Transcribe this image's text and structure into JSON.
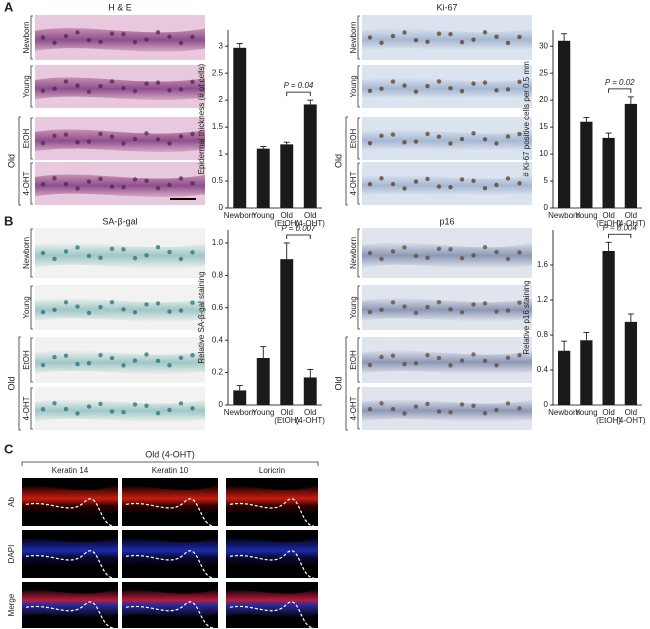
{
  "panel_labels": [
    "A",
    "B",
    "C"
  ],
  "micrographs": [
    {
      "title": "H & E",
      "rows": [
        "Newborn",
        "Young",
        "EtOH",
        "4-OHT"
      ],
      "group": "Old"
    },
    {
      "title": "Ki-67",
      "rows": [
        "Newborn",
        "Young",
        "EtOH",
        "4-OHT"
      ],
      "group": "Old"
    },
    {
      "title": "SA-β-gal",
      "rows": [
        "Newborn",
        "Young",
        "EtOH",
        "4-OHT"
      ],
      "group": "Old"
    },
    {
      "title": "p16",
      "rows": [
        "Newborn",
        "Young",
        "EtOH",
        "4-OHT"
      ],
      "group": "Old"
    }
  ],
  "fluorescence": {
    "title": "Old (4-OHT)",
    "columns": [
      "Keratin 14",
      "Keratin 10",
      "Loricrin"
    ],
    "rows": [
      "Ab",
      "DAPI",
      "Merge"
    ]
  },
  "chart_data": [
    {
      "type": "bar",
      "ylabel": "Epidermal thickness (# of cells)",
      "categories": [
        "Newborn",
        "Young",
        "Old (EtOH)",
        "Old (4-OHT)"
      ],
      "values": [
        2.97,
        1.1,
        1.18,
        1.92
      ],
      "errors": [
        0.08,
        0.04,
        0.04,
        0.08
      ],
      "color": "#1a1a1a",
      "ylim": [
        0,
        3.3
      ],
      "yticks": [
        0,
        0.5,
        1,
        1.5,
        2,
        2.5,
        3
      ],
      "annotation": "P = 0.04"
    },
    {
      "type": "bar",
      "ylabel": "# Ki-67 positive cells per 0.5 mm",
      "categories": [
        "Newborn",
        "Young",
        "Old (EtOH)",
        "Old (4-OHT)"
      ],
      "values": [
        31,
        16,
        13,
        19.3
      ],
      "errors": [
        1.3,
        0.8,
        0.9,
        1.3
      ],
      "color": "#1a1a1a",
      "ylim": [
        0,
        33
      ],
      "yticks": [
        0,
        5,
        10,
        15,
        20,
        25,
        30
      ],
      "annotation": "P = 0.02"
    },
    {
      "type": "bar",
      "ylabel": "Relative SA-β-gal staining",
      "categories": [
        "Newborn",
        "Young",
        "Old (EtOH)",
        "Old (4-OHT)"
      ],
      "values": [
        0.09,
        0.29,
        0.9,
        0.17
      ],
      "errors": [
        0.03,
        0.07,
        0.1,
        0.05
      ],
      "color": "#1a1a1a",
      "ylim": [
        0,
        1.08
      ],
      "yticks": [
        0,
        0.2,
        0.4,
        0.6,
        0.8,
        {
          "value": 1,
          "label": "1.0"
        }
      ],
      "annotation": "P = 0.007"
    },
    {
      "type": "bar",
      "ylabel": "Relative p16 staining",
      "categories": [
        "Newborn",
        "Young",
        "Old (EtOH)",
        "Old (4-OHT)"
      ],
      "values": [
        0.62,
        0.74,
        1.76,
        0.95
      ],
      "errors": [
        0.11,
        0.09,
        0.1,
        0.09
      ],
      "color": "#1a1a1a",
      "ylim": [
        0,
        2.0
      ],
      "yticks": [
        0,
        0.4,
        0.8,
        1.2,
        1.6
      ],
      "annotation": "P = 0.004"
    }
  ]
}
